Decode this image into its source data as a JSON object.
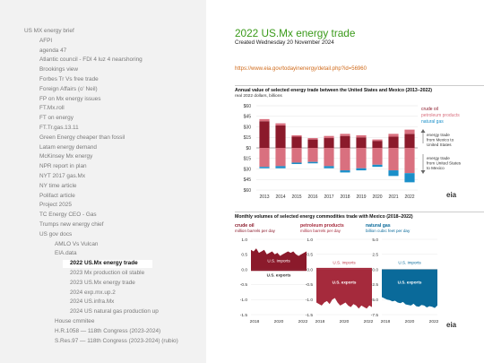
{
  "sidebar": {
    "items": [
      {
        "label": "US MX energy brief",
        "level": 0
      },
      {
        "label": "AFPI",
        "level": 1
      },
      {
        "label": "agenda 47",
        "level": 1
      },
      {
        "label": "Atlantic council - FDI 4 luz 4 nearshoring",
        "level": 1
      },
      {
        "label": "Brookings view",
        "level": 1
      },
      {
        "label": "Forbes Tr Vs free trade",
        "level": 1
      },
      {
        "label": "Foreign Affairs (o' Neil)",
        "level": 1
      },
      {
        "label": "FP on Mx energy issues",
        "level": 1
      },
      {
        "label": "FT.Mx.roll",
        "level": 1
      },
      {
        "label": "FT on energy",
        "level": 1
      },
      {
        "label": "FT.Tr.gas.13.11",
        "level": 1
      },
      {
        "label": "Green Energy cheaper than fossil",
        "level": 1
      },
      {
        "label": "Latam energy demand",
        "level": 1
      },
      {
        "label": "McKinsey Mx energy",
        "level": 1
      },
      {
        "label": "NPR report in plan",
        "level": 1
      },
      {
        "label": "NYT 2017 gas.Mx",
        "level": 1
      },
      {
        "label": "NY time article",
        "level": 1
      },
      {
        "label": "Polifact article",
        "level": 1
      },
      {
        "label": "Project 2025",
        "level": 1
      },
      {
        "label": "TC Energy CEO - Gas",
        "level": 1
      },
      {
        "label": "Trumps new energy chief",
        "level": 1
      },
      {
        "label": "US gov docs",
        "level": 1
      },
      {
        "label": "AMLO Vs Vulcan",
        "level": 2
      },
      {
        "label": "EIA.data",
        "level": 2
      },
      {
        "label": "2022 US.Mx energy trade",
        "level": 3,
        "active": true
      },
      {
        "label": "2023 Mx production oil stable",
        "level": 3
      },
      {
        "label": "2023 US.Mx energy trade",
        "level": 3
      },
      {
        "label": "2024 exp.mx.up.2",
        "level": 3
      },
      {
        "label": "2024 US.infra.Mx",
        "level": 3
      },
      {
        "label": "2024 US natural gas production up",
        "level": 3
      },
      {
        "label": "House cmmitee",
        "level": 2
      },
      {
        "label": "H.R.1058 — 118th Congress (2023-2024)",
        "level": 2
      },
      {
        "label": "S.Res.97 — 118th Congress (2023-2024) (rubio)",
        "level": 2
      }
    ]
  },
  "page": {
    "title": "2022 US.Mx energy trade",
    "subtitle": "Created Wednesday 20 November 2024",
    "link": "https://www.eia.gov/todayinenergy/detail.php?id=56960"
  },
  "colors": {
    "title_green": "#3a9a1a",
    "link_orange": "#d06a1a",
    "crude_oil": "#8b1a2b",
    "petroleum_products": "#d9707f",
    "natural_gas": "#1a8fc9",
    "petroleum_area": "#a52a3c",
    "natgas_area": "#0a6a9a"
  },
  "chart_data": [
    {
      "type": "bar",
      "title": "Annual value of selected energy trade between the United States and Mexico (2013–2022)",
      "subtitle": "real 2022 dollars, billions",
      "categories": [
        "2013",
        "2014",
        "2015",
        "2016",
        "2017",
        "2018",
        "2019",
        "2020",
        "2021",
        "2022"
      ],
      "ylim": [
        -60,
        60
      ],
      "yticks": [
        "$60",
        "$45",
        "$30",
        "$15",
        "$0",
        "$15",
        "$30",
        "$45",
        "$60"
      ],
      "series": [
        {
          "name": "crude oil",
          "values": [
            38,
            32,
            16,
            12,
            14,
            17,
            15,
            10,
            16,
            20
          ]
        },
        {
          "name": "petroleum products",
          "values": [
            3,
            3,
            2,
            2,
            3,
            3,
            3,
            2,
            4,
            6
          ]
        },
        {
          "name": "petroleum products exports",
          "values": [
            -27,
            -26,
            -21,
            -20,
            -26,
            -32,
            -29,
            -24,
            -32,
            -36
          ]
        },
        {
          "name": "natural gas",
          "values": [
            -2,
            -3,
            -2,
            -2,
            -3,
            -3,
            -3,
            -3,
            -8,
            -13
          ]
        }
      ],
      "legend": [
        "crude oil",
        "petroleum products",
        "natural gas"
      ],
      "annotations": [
        "energy trade from Mexico to United States",
        "energy trade from United States to Mexico"
      ],
      "logo": "eia"
    },
    {
      "type": "area",
      "title": "Monthly volumes of selected energy commodities trade with Mexico (2018–2022)",
      "panels": [
        {
          "name": "crude oil",
          "unit": "million barrels per day",
          "yticks": [
            "1.0",
            "0.5",
            "0.0",
            "-0.5",
            "-1.0",
            "-1.5"
          ],
          "ylim": [
            -1.5,
            1.0
          ],
          "xticks": [
            "2018",
            "2020",
            "2022"
          ],
          "labels": [
            "U.S. imports",
            "U.S. exports"
          ],
          "imports": [
            0.65,
            0.6,
            0.7,
            0.55,
            0.6,
            0.65,
            0.5,
            0.55,
            0.6,
            0.5,
            0.55,
            0.45,
            0.5,
            0.55,
            0.6,
            0.55,
            0.6,
            0.5,
            0.45,
            0.5,
            0.55,
            0.6
          ],
          "exports": [
            -0.05,
            -0.05,
            -0.05,
            -0.05,
            -0.05,
            -0.05,
            -0.05,
            -0.05,
            -0.05,
            -0.05,
            -0.05,
            -0.05,
            -0.05,
            -0.05,
            -0.05,
            -0.05,
            -0.05,
            -0.05,
            -0.05,
            -0.05,
            -0.05,
            -0.05
          ]
        },
        {
          "name": "petroleum products",
          "unit": "million barrels per day",
          "yticks": [
            "1.0",
            "0.5",
            "0.0",
            "-0.5",
            "-1.0",
            "-1.5"
          ],
          "ylim": [
            -1.5,
            1.0
          ],
          "xticks": [
            "2018",
            "2020",
            "2022"
          ],
          "labels": [
            "U.S. imports",
            "U.S. exports"
          ],
          "imports": [
            0.05,
            0.05,
            0.05,
            0.05,
            0.05,
            0.05,
            0.05,
            0.05,
            0.05,
            0.05,
            0.05,
            0.05,
            0.05,
            0.05,
            0.05,
            0.05,
            0.05,
            0.05,
            0.05,
            0.05,
            0.05,
            0.05
          ],
          "exports": [
            -1.1,
            -1.15,
            -1.2,
            -1.1,
            -1.05,
            -1.15,
            -1.0,
            -0.95,
            -1.1,
            -1.2,
            -1.15,
            -1.1,
            -1.2,
            -1.25,
            -1.15,
            -1.2,
            -1.3,
            -1.2,
            -1.25,
            -1.3,
            -1.2,
            -1.25
          ]
        },
        {
          "name": "natural gas",
          "unit": "billion cubic feet per day",
          "yticks": [
            "5.0",
            "2.5",
            "0.0",
            "-2.5",
            "-5.0",
            "-7.5"
          ],
          "ylim": [
            -7.5,
            5.0
          ],
          "xticks": [
            "2018",
            "2020",
            "2022"
          ],
          "labels": [
            "U.S. imports",
            "U.S. exports"
          ],
          "imports": [
            0.02,
            0.02,
            0.02,
            0.02,
            0.02,
            0.02,
            0.02,
            0.02,
            0.02,
            0.02,
            0.02,
            0.02,
            0.02,
            0.02,
            0.02,
            0.02,
            0.02,
            0.02,
            0.02,
            0.02,
            0.02,
            0.02
          ],
          "exports": [
            -4.6,
            -4.8,
            -5.0,
            -5.1,
            -5.3,
            -5.2,
            -5.5,
            -5.6,
            -5.4,
            -5.8,
            -5.9,
            -6.0,
            -5.7,
            -6.1,
            -6.2,
            -5.9,
            -6.0,
            -6.3,
            -6.1,
            -6.2,
            -6.4,
            -6.0
          ]
        }
      ],
      "logo": "eia"
    }
  ]
}
